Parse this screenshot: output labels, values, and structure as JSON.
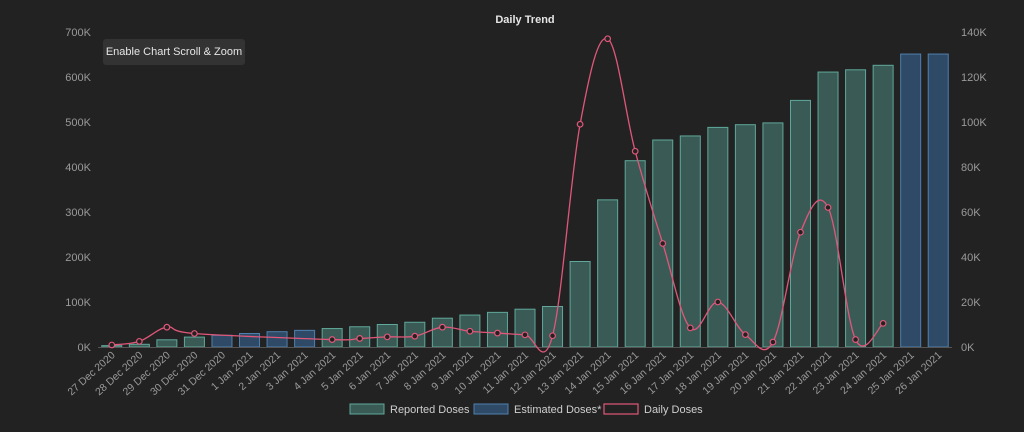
{
  "chart_data": {
    "type": "bar",
    "title": "Daily Trend",
    "categories": [
      "27 Dec 2020",
      "28 Dec 2020",
      "29 Dec 2020",
      "30 Dec 2020",
      "31 Dec 2020",
      "1 Jan 2021",
      "2 Jan 2021",
      "3 Jan 2021",
      "4 Jan 2021",
      "5 Jan 2021",
      "6 Jan 2021",
      "7 Jan 2021",
      "8 Jan 2021",
      "9 Jan 2021",
      "10 Jan 2021",
      "11 Jan 2021",
      "12 Jan 2021",
      "13 Jan 2021",
      "14 Jan 2021",
      "15 Jan 2021",
      "16 Jan 2021",
      "17 Jan 2021",
      "18 Jan 2021",
      "19 Jan 2021",
      "20 Jan 2021",
      "21 Jan 2021",
      "22 Jan 2021",
      "23 Jan 2021",
      "24 Jan 2021",
      "25 Jan 2021",
      "26 Jan 2021"
    ],
    "y_left": {
      "ticks": [
        "0K",
        "100K",
        "200K",
        "300K",
        "400K",
        "500K",
        "600K",
        "700K"
      ],
      "lim": [
        0,
        700000
      ]
    },
    "y_right": {
      "ticks": [
        "0K",
        "20K",
        "40K",
        "60K",
        "80K",
        "100K",
        "120K",
        "140K"
      ],
      "lim": [
        0,
        140000
      ]
    },
    "series": [
      {
        "name": "Reported Doses",
        "type": "bar",
        "axis": "left",
        "color": "#3a5b55",
        "stroke": "#5fa89b",
        "values": [
          3000,
          6000,
          16000,
          22000,
          null,
          null,
          null,
          null,
          41000,
          45000,
          50000,
          55000,
          64000,
          71000,
          77000,
          84000,
          90000,
          190000,
          327000,
          414000,
          460000,
          469000,
          488000,
          494000,
          498000,
          548000,
          611000,
          616000,
          626000,
          null,
          null
        ]
      },
      {
        "name": "Estimated Doses*",
        "type": "bar",
        "axis": "left",
        "color": "#2f4a66",
        "stroke": "#4f80ad",
        "values": [
          null,
          null,
          null,
          null,
          26000,
          30000,
          34000,
          37000,
          null,
          null,
          null,
          null,
          null,
          null,
          null,
          null,
          null,
          null,
          null,
          null,
          null,
          null,
          null,
          null,
          null,
          null,
          null,
          null,
          null,
          651000,
          651000
        ]
      },
      {
        "name": "Daily Doses",
        "type": "line",
        "axis": "right",
        "color": "#e0577a",
        "values": [
          900,
          2500,
          8800,
          6000,
          null,
          null,
          null,
          null,
          3300,
          3800,
          4500,
          4800,
          8800,
          7000,
          6200,
          5400,
          5000,
          99000,
          137000,
          87000,
          46000,
          8500,
          20000,
          5500,
          2200,
          51000,
          62000,
          3300,
          10500,
          null,
          null
        ]
      }
    ],
    "legend_position": "bottom",
    "grid": false
  },
  "ui": {
    "zoom_button_label": "Enable Chart Scroll & Zoom"
  }
}
